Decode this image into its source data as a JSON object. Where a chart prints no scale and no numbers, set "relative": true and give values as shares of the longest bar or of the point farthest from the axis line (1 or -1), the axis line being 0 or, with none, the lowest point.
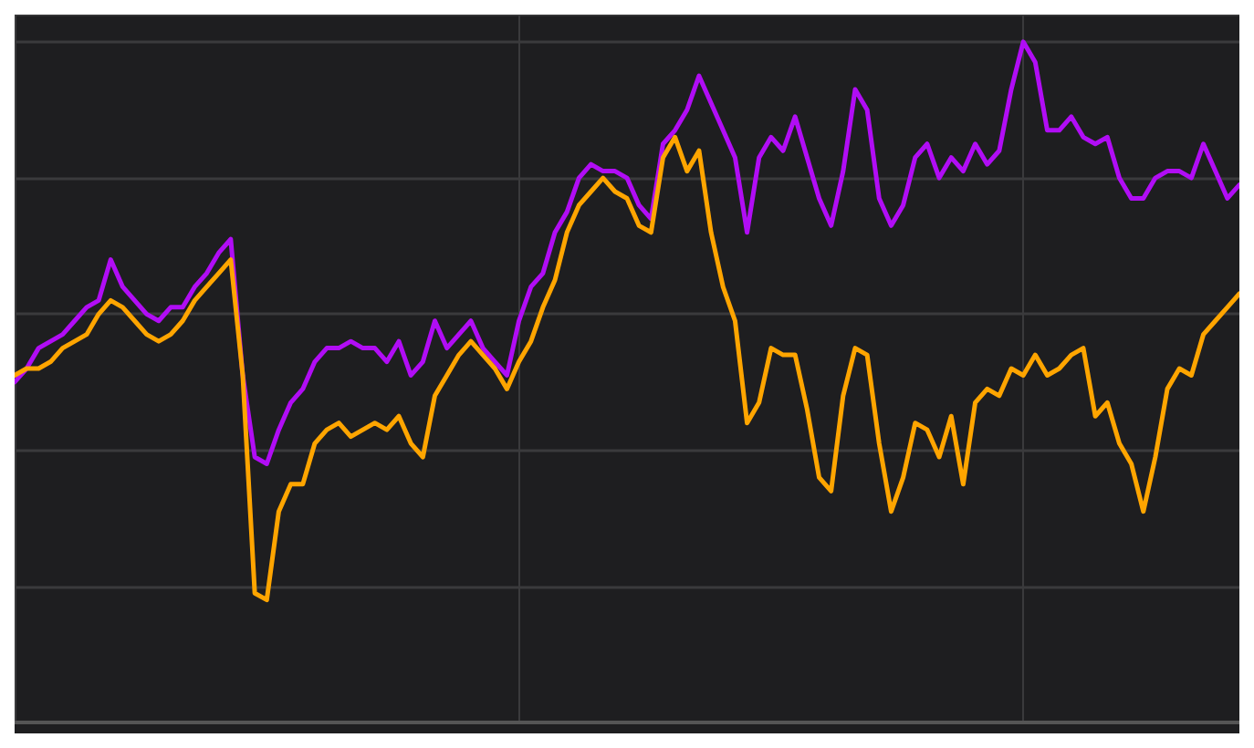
{
  "chart_data": {
    "type": "line",
    "relative": true,
    "grid": true,
    "line_style": "solid",
    "categories": [
      null,
      null,
      null,
      null,
      null,
      null,
      null,
      null,
      null,
      null,
      null,
      null,
      null,
      null,
      null,
      null,
      null,
      null,
      null,
      null,
      null,
      null,
      null,
      null,
      null,
      null,
      null,
      null,
      null,
      null,
      null,
      null,
      null,
      null,
      null,
      null,
      null,
      null,
      null,
      null,
      null,
      null,
      null,
      null,
      null,
      null,
      null,
      null,
      null,
      null,
      null,
      null,
      null,
      null,
      null,
      null,
      null,
      null,
      null,
      null,
      null,
      null,
      null,
      null,
      null,
      null,
      null,
      null,
      null,
      null,
      null,
      null,
      null,
      null,
      null,
      null,
      null,
      null,
      null,
      null,
      null,
      null,
      null,
      null,
      null,
      null,
      null,
      null,
      null,
      null,
      null,
      null,
      null,
      null,
      null,
      null,
      null,
      null,
      null,
      null,
      null,
      null,
      null
    ],
    "series": [
      {
        "color": "#b10df5",
        "values": [
          0.5,
          0.52,
          0.55,
          0.56,
          0.57,
          0.59,
          0.61,
          0.62,
          0.68,
          0.64,
          0.62,
          0.6,
          0.59,
          0.61,
          0.61,
          0.64,
          0.66,
          0.69,
          0.71,
          0.51,
          0.39,
          0.38,
          0.43,
          0.47,
          0.49,
          0.53,
          0.55,
          0.55,
          0.56,
          0.55,
          0.55,
          0.53,
          0.56,
          0.51,
          0.53,
          0.59,
          0.55,
          0.57,
          0.59,
          0.55,
          0.53,
          0.51,
          0.59,
          0.64,
          0.66,
          0.72,
          0.75,
          0.8,
          0.82,
          0.81,
          0.81,
          0.8,
          0.76,
          0.74,
          0.85,
          0.87,
          0.9,
          0.95,
          0.91,
          0.87,
          0.83,
          0.72,
          0.83,
          0.86,
          0.84,
          0.89,
          0.83,
          0.77,
          0.73,
          0.81,
          0.93,
          0.9,
          0.77,
          0.73,
          0.76,
          0.83,
          0.85,
          0.8,
          0.83,
          0.81,
          0.85,
          0.82,
          0.84,
          0.93,
          1,
          0.97,
          0.87,
          0.87,
          0.89,
          0.86,
          0.85,
          0.86,
          0.8,
          0.77,
          0.77,
          0.8,
          0.81,
          0.81,
          0.8,
          0.85,
          0.81,
          0.77,
          0.79
        ]
      },
      {
        "color": "#ffa500",
        "values": [
          0.51,
          0.52,
          0.52,
          0.53,
          0.55,
          0.56,
          0.57,
          0.6,
          0.62,
          0.61,
          0.59,
          0.57,
          0.56,
          0.57,
          0.59,
          0.62,
          0.64,
          0.66,
          0.68,
          0.51,
          0.19,
          0.18,
          0.31,
          0.35,
          0.35,
          0.41,
          0.43,
          0.44,
          0.42,
          0.43,
          0.44,
          0.43,
          0.45,
          0.41,
          0.39,
          0.48,
          0.51,
          0.54,
          0.56,
          0.54,
          0.52,
          0.49,
          0.53,
          0.56,
          0.61,
          0.65,
          0.72,
          0.76,
          0.78,
          0.8,
          0.78,
          0.77,
          0.73,
          0.72,
          0.83,
          0.86,
          0.81,
          0.84,
          0.72,
          0.64,
          0.59,
          0.44,
          0.47,
          0.55,
          0.54,
          0.54,
          0.46,
          0.36,
          0.34,
          0.48,
          0.55,
          0.54,
          0.41,
          0.31,
          0.36,
          0.44,
          0.43,
          0.39,
          0.45,
          0.35,
          0.47,
          0.49,
          0.48,
          0.52,
          0.51,
          0.54,
          0.51,
          0.52,
          0.54,
          0.55,
          0.45,
          0.47,
          0.41,
          0.38,
          0.31,
          0.39,
          0.49,
          0.52,
          0.51,
          0.57,
          0.59,
          0.61,
          0.63
        ]
      }
    ]
  }
}
